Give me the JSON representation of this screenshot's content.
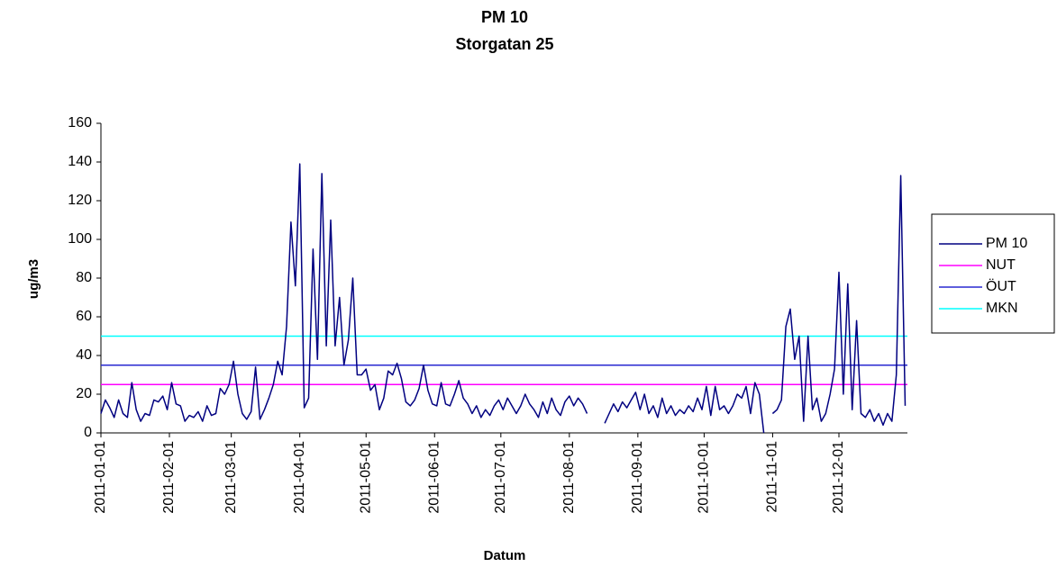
{
  "chart_data": {
    "type": "line",
    "title": "PM 10",
    "subtitle": "Storgatan 25",
    "x_label": "Datum",
    "y_label": "ug/m3",
    "x": [
      "2011-01-01",
      "2011-01-03",
      "2011-01-05",
      "2011-01-07",
      "2011-01-09",
      "2011-01-11",
      "2011-01-13",
      "2011-01-15",
      "2011-01-17",
      "2011-01-19",
      "2011-01-21",
      "2011-01-23",
      "2011-01-25",
      "2011-01-27",
      "2011-01-29",
      "2011-01-31",
      "2011-02-02",
      "2011-02-04",
      "2011-02-06",
      "2011-02-08",
      "2011-02-10",
      "2011-02-12",
      "2011-02-14",
      "2011-02-16",
      "2011-02-18",
      "2011-02-20",
      "2011-02-22",
      "2011-02-24",
      "2011-02-26",
      "2011-02-28",
      "2011-03-02",
      "2011-03-04",
      "2011-03-06",
      "2011-03-08",
      "2011-03-10",
      "2011-03-12",
      "2011-03-14",
      "2011-03-16",
      "2011-03-18",
      "2011-03-20",
      "2011-03-22",
      "2011-03-24",
      "2011-03-26",
      "2011-03-28",
      "2011-03-30",
      "2011-04-01",
      "2011-04-03",
      "2011-04-05",
      "2011-04-07",
      "2011-04-09",
      "2011-04-11",
      "2011-04-13",
      "2011-04-15",
      "2011-04-17",
      "2011-04-19",
      "2011-04-21",
      "2011-04-23",
      "2011-04-25",
      "2011-04-27",
      "2011-04-29",
      "2011-05-01",
      "2011-05-03",
      "2011-05-05",
      "2011-05-07",
      "2011-05-09",
      "2011-05-11",
      "2011-05-13",
      "2011-05-15",
      "2011-05-17",
      "2011-05-19",
      "2011-05-21",
      "2011-05-23",
      "2011-05-25",
      "2011-05-27",
      "2011-05-29",
      "2011-05-31",
      "2011-06-02",
      "2011-06-04",
      "2011-06-06",
      "2011-06-08",
      "2011-06-10",
      "2011-06-12",
      "2011-06-14",
      "2011-06-16",
      "2011-06-18",
      "2011-06-20",
      "2011-06-22",
      "2011-06-24",
      "2011-06-26",
      "2011-06-28",
      "2011-06-30",
      "2011-07-02",
      "2011-07-04",
      "2011-07-06",
      "2011-07-08",
      "2011-07-10",
      "2011-07-12",
      "2011-07-14",
      "2011-07-16",
      "2011-07-18",
      "2011-07-20",
      "2011-07-22",
      "2011-07-24",
      "2011-07-26",
      "2011-07-28",
      "2011-07-30",
      "2011-08-01",
      "2011-08-03",
      "2011-08-05",
      "2011-08-07",
      "2011-08-09",
      "2011-08-11",
      "2011-08-13",
      "2011-08-15",
      "2011-08-17",
      "2011-08-19",
      "2011-08-21",
      "2011-08-23",
      "2011-08-25",
      "2011-08-27",
      "2011-08-29",
      "2011-08-31",
      "2011-09-02",
      "2011-09-04",
      "2011-09-06",
      "2011-09-08",
      "2011-09-10",
      "2011-09-12",
      "2011-09-14",
      "2011-09-16",
      "2011-09-18",
      "2011-09-20",
      "2011-09-22",
      "2011-09-24",
      "2011-09-26",
      "2011-09-28",
      "2011-09-30",
      "2011-10-02",
      "2011-10-04",
      "2011-10-06",
      "2011-10-08",
      "2011-10-10",
      "2011-10-12",
      "2011-10-14",
      "2011-10-16",
      "2011-10-18",
      "2011-10-20",
      "2011-10-22",
      "2011-10-24",
      "2011-10-26",
      "2011-10-28",
      "2011-10-30",
      "2011-11-01",
      "2011-11-03",
      "2011-11-05",
      "2011-11-07",
      "2011-11-09",
      "2011-11-11",
      "2011-11-13",
      "2011-11-15",
      "2011-11-17",
      "2011-11-19",
      "2011-11-21",
      "2011-11-23",
      "2011-11-25",
      "2011-11-27",
      "2011-11-29",
      "2011-12-01",
      "2011-12-03",
      "2011-12-05",
      "2011-12-07",
      "2011-12-09",
      "2011-12-11",
      "2011-12-13",
      "2011-12-15",
      "2011-12-17",
      "2011-12-19",
      "2011-12-21",
      "2011-12-23",
      "2011-12-25",
      "2011-12-27",
      "2011-12-29",
      "2011-12-31"
    ],
    "series": [
      {
        "name": "PM 10",
        "color": "#000080",
        "values": [
          10,
          17,
          13,
          8,
          17,
          10,
          8,
          26,
          12,
          6,
          10,
          9,
          17,
          16,
          19,
          12,
          26,
          15,
          14,
          6,
          9,
          8,
          11,
          6,
          14,
          9,
          10,
          23,
          20,
          25,
          37,
          20,
          10,
          7,
          11,
          34,
          7,
          12,
          18,
          25,
          37,
          30,
          55,
          109,
          76,
          139,
          13,
          18,
          95,
          38,
          134,
          45,
          110,
          45,
          70,
          35,
          48,
          80,
          30,
          30,
          33,
          22,
          25,
          12,
          18,
          32,
          30,
          36,
          28,
          16,
          14,
          17,
          23,
          35,
          22,
          15,
          14,
          26,
          15,
          14,
          20,
          27,
          18,
          15,
          10,
          14,
          8,
          12,
          9,
          14,
          17,
          12,
          18,
          14,
          10,
          14,
          20,
          15,
          12,
          8,
          16,
          10,
          18,
          12,
          9,
          16,
          19,
          14,
          18,
          15,
          10,
          null,
          null,
          null,
          5,
          10,
          15,
          11,
          16,
          13,
          17,
          21,
          12,
          20,
          10,
          14,
          8,
          18,
          10,
          14,
          9,
          12,
          10,
          14,
          11,
          18,
          12,
          24,
          9,
          24,
          12,
          14,
          10,
          14,
          20,
          18,
          24,
          10,
          26,
          20,
          0,
          null,
          10,
          12,
          17,
          55,
          64,
          38,
          50,
          6,
          50,
          12,
          18,
          6,
          10,
          20,
          33,
          83,
          20,
          77,
          12,
          58,
          10,
          8,
          12,
          6,
          10,
          4,
          10,
          6,
          30,
          133,
          14
        ]
      }
    ],
    "reference_lines": [
      {
        "name": "NUT",
        "color": "#ff00ff",
        "value": 25
      },
      {
        "name": "ÖUT",
        "color": "#2828d0",
        "value": 35
      },
      {
        "name": "MKN",
        "color": "#00ffff",
        "value": 50
      }
    ],
    "xlim": [
      "2011-01-01",
      "2012-01-01"
    ],
    "xticks": [
      "2011-01-01",
      "2011-02-01",
      "2011-03-01",
      "2011-04-01",
      "2011-05-01",
      "2011-06-01",
      "2011-07-01",
      "2011-08-01",
      "2011-09-01",
      "2011-10-01",
      "2011-11-01",
      "2011-12-01"
    ],
    "ylim": [
      0,
      160
    ],
    "yticks": [
      0,
      20,
      40,
      60,
      80,
      100,
      120,
      140,
      160
    ],
    "grid": false
  }
}
